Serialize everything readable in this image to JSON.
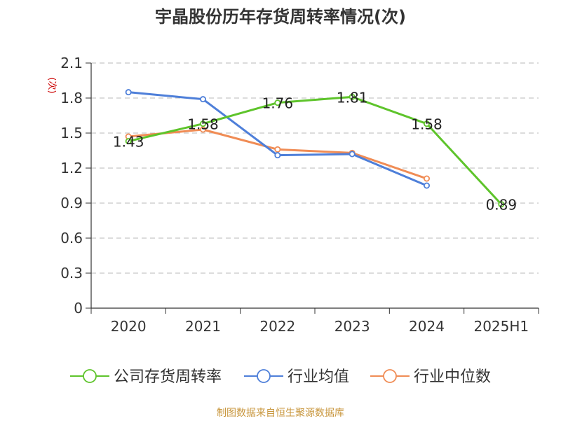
{
  "chart_data": {
    "type": "line",
    "title": "宇晶股份历年存货周转率情况(次)",
    "ylabel": "(次)",
    "xlabel": "",
    "categories": [
      "2020",
      "2021",
      "2022",
      "2023",
      "2024",
      "2025H1"
    ],
    "ylim": [
      0,
      2.1
    ],
    "yticks": [
      0,
      0.3,
      0.6,
      0.9,
      1.2,
      1.5,
      1.8,
      2.1
    ],
    "ytick_labels": [
      "0",
      "0.3",
      "0.6",
      "0.9",
      "1.2",
      "1.5",
      "1.8",
      "2.1"
    ],
    "grid": true,
    "legend_position": "bottom",
    "series": [
      {
        "name": "公司存货周转率",
        "color": "#5ec42b",
        "values": [
          1.43,
          1.58,
          1.76,
          1.81,
          1.58,
          0.89
        ],
        "data_labels": [
          "1.43",
          "1.58",
          "1.76",
          "1.81",
          "1.58",
          "0.89"
        ]
      },
      {
        "name": "行业均值",
        "color": "#4e7fd9",
        "values": [
          1.85,
          1.79,
          1.31,
          1.32,
          1.05,
          null
        ]
      },
      {
        "name": "行业中位数",
        "color": "#f08c55",
        "values": [
          1.47,
          1.53,
          1.36,
          1.33,
          1.11,
          null
        ]
      }
    ]
  },
  "footer": {
    "source": "制图数据来自恒生聚源数据库",
    "color": "#c8963c"
  }
}
